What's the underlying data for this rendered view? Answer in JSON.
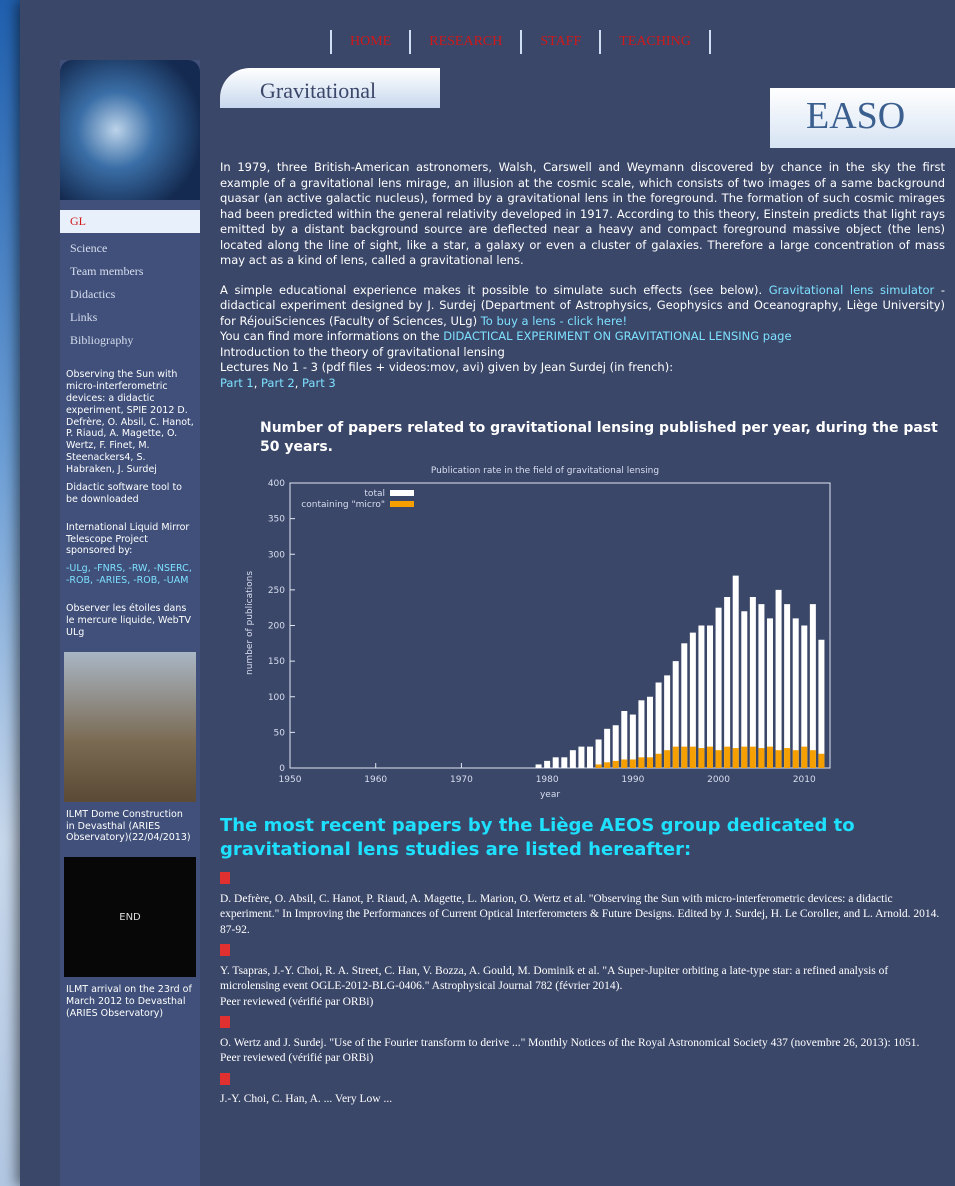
{
  "nav": [
    "HOME",
    "RESEARCH",
    "STAFF",
    "TEACHING"
  ],
  "header": {
    "title": "Gravitational Lenses",
    "logo": "EASO"
  },
  "sidebar": {
    "menu": [
      "GL",
      "Science",
      "Team members",
      "Didactics",
      "Links",
      "Bibliography"
    ],
    "news": [
      "Observing the Sun with micro-interferometric devices: a didactic experiment, SPIE 2012 D. Defrère, O. Absil, C. Hanot, P. Riaud, A. Magette, O. Wertz, F. Finet, M. Steenackers4, S. Habraken, J. Surdej",
      "Didactic software tool to be downloaded",
      "International Liquid Mirror Telescope Project sponsored by:",
      "-ULg, -FNRS, -RW, -NSERC, -ROB, -ARIES, -ROB, -UAM",
      "Observer les étoiles dans le mercure liquide, WebTV ULg"
    ],
    "photo_caption": "ILMT Dome Construction in Devasthal (ARIES Observatory)(22/04/2013)",
    "video_label": "END",
    "video_caption": "ILMT arrival on the 23rd of March 2012 to Devasthal (ARIES Observatory)"
  },
  "intro": {
    "paragraph": "In 1979, three British-American astronomers, Walsh, Carswell and Weymann discovered by chance in the sky the first example of a gravitational lens mirage, an illusion at the cosmic scale, which consists of two images of a same background quasar (an active galactic nucleus), formed by a gravitational lens in the foreground. The formation of such cosmic mirages had been predicted within the general relativity developed in 1917. According to this theory, Einstein predicts that light rays emitted by a distant background source are deflected near a heavy and compact foreground massive object (the lens) located along the line of sight, like a star, a galaxy or even a cluster of galaxies. Therefore a large concentration of mass may act as a kind of lens, called a gravitational lens.",
    "experiment_text": "A simple educational experience makes it possible to simulate such effects (see below).",
    "simulator_link": "Gravitational lens simulator",
    "experiment_text2": "- didactical experiment designed by J. Surdej (Department of Astrophysics, Geophysics and Oceanography, Liège University) for RéjouiSciences (Faculty of Sciences, ULg)",
    "buy_link": "To buy a lens - click here!",
    "more_text": "You can find more informations on the",
    "more_link": "DIDACTICAL EXPERIMENT ON GRAVITATIONAL LENSING page",
    "theory": "Introduction to the theory of gravitational lensing",
    "lectures": "Lectures No 1 - 3 (pdf files + videos:mov, avi) given by Jean Surdej (in french):",
    "parts": [
      "Part 1",
      "Part 2",
      "Part 3"
    ]
  },
  "chart_heading": "Number of papers related to gravitational lensing published per year, during the past 50 years.",
  "chart_data": {
    "type": "bar",
    "title": "Publication rate in the field of gravitational lensing",
    "x_label": "year",
    "y_label": "number of publications",
    "x": [
      1979,
      1980,
      1981,
      1982,
      1983,
      1984,
      1985,
      1986,
      1987,
      1988,
      1989,
      1990,
      1991,
      1992,
      1993,
      1994,
      1995,
      1996,
      1997,
      1998,
      1999,
      2000,
      2001,
      2002,
      2003,
      2004,
      2005,
      2006,
      2007,
      2008,
      2009,
      2010,
      2011,
      2012
    ],
    "series": [
      {
        "name": "total",
        "color": "#ffffff",
        "values": [
          5,
          10,
          15,
          15,
          25,
          30,
          30,
          40,
          55,
          60,
          80,
          75,
          95,
          100,
          120,
          130,
          150,
          175,
          190,
          200,
          200,
          225,
          240,
          270,
          220,
          240,
          230,
          210,
          250,
          230,
          210,
          200,
          230,
          180
        ]
      },
      {
        "name": "containing \"micro\"",
        "color": "#f5a000",
        "values": [
          0,
          0,
          0,
          0,
          0,
          0,
          0,
          5,
          8,
          10,
          12,
          12,
          15,
          15,
          20,
          25,
          30,
          30,
          30,
          28,
          30,
          25,
          30,
          28,
          30,
          30,
          28,
          30,
          25,
          28,
          25,
          30,
          25,
          20
        ]
      }
    ],
    "xlim": [
      1950,
      2013
    ],
    "xticks": [
      1950,
      1960,
      1970,
      1980,
      1990,
      2000,
      2010
    ],
    "ylim": [
      0,
      400
    ],
    "yticks": [
      0,
      50,
      100,
      150,
      200,
      250,
      300,
      350,
      400
    ],
    "legend": "upper left"
  },
  "papers_heading": "The most recent papers by the Liège AEOS group dedicated to gravitational lens studies are listed hereafter:",
  "papers": [
    {
      "text": "D. Defrère, O. Absil, C. Hanot, P. Riaud, A. Magette, L. Marion, O. Wertz et al. \"Observing the Sun with micro-interferometric devices: a didactic experiment.\" In Improving the Performances of Current Optical Interferometers & Future Designs. Edited by J. Surdej, H. Le Coroller, and L. Arnold. 2014. 87-92."
    },
    {
      "text": "Y. Tsapras, J.-Y. Choi, R. A. Street, C. Han, V. Bozza, A. Gould, M. Dominik et al. \"A Super-Jupiter orbiting a late-type star: a refined analysis of microlensing event OGLE-2012-BLG-0406.\" Astrophysical Journal 782 (février 2014).",
      "note": "Peer reviewed (vérifié par ORBi)"
    },
    {
      "text": "O. Wertz and J. Surdej. \"Use of the Fourier transform to derive ...\" Monthly Notices of the Royal Astronomical Society 437 (novembre 26, 2013): 1051.",
      "note": "Peer reviewed (vérifié par ORBi)"
    },
    {
      "text": "J.-Y. Choi, C. Han, A. ... Very Low ..."
    }
  ]
}
